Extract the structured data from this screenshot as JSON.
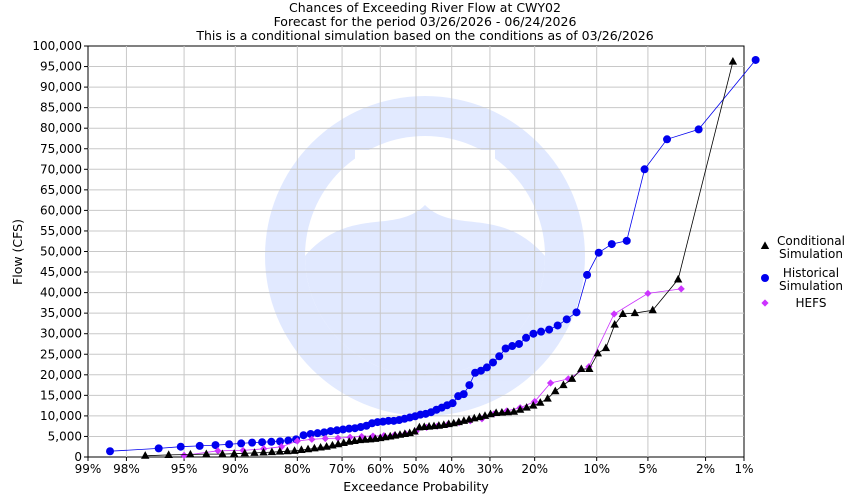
{
  "chart_data": {
    "type": "scatter",
    "title": "Chances of Exceeding River Flow at CWY02",
    "subtitle_lines": [
      "Forecast for the period 03/26/2026 - 06/24/2026",
      "This is a conditional simulation based on the conditions as of 03/26/2026"
    ],
    "xlabel": "Exceedance Probability",
    "ylabel": "Flow (CFS)",
    "x_scale": "normal-probability",
    "x_ticks": [
      {
        "p": 0.99,
        "label": "99%"
      },
      {
        "p": 0.98,
        "label": "98%"
      },
      {
        "p": 0.95,
        "label": "95%"
      },
      {
        "p": 0.9,
        "label": "90%"
      },
      {
        "p": 0.8,
        "label": "80%"
      },
      {
        "p": 0.7,
        "label": "70%"
      },
      {
        "p": 0.6,
        "label": "60%"
      },
      {
        "p": 0.5,
        "label": "50%"
      },
      {
        "p": 0.4,
        "label": "40%"
      },
      {
        "p": 0.3,
        "label": "30%"
      },
      {
        "p": 0.2,
        "label": "20%"
      },
      {
        "p": 0.1,
        "label": "10%"
      },
      {
        "p": 0.05,
        "label": "5%"
      },
      {
        "p": 0.02,
        "label": "2%"
      },
      {
        "p": 0.01,
        "label": "1%"
      }
    ],
    "ylim": [
      0,
      100000
    ],
    "y_tick_step": 5000,
    "y_tick_labels": [
      "0",
      "5,000",
      "10,000",
      "15,000",
      "20,000",
      "25,000",
      "30,000",
      "35,000",
      "40,000",
      "45,000",
      "50,000",
      "55,000",
      "60,000",
      "65,000",
      "70,000",
      "75,000",
      "80,000",
      "85,000",
      "90,000",
      "95,000",
      "100,000"
    ],
    "grid": true,
    "legend_position": "right",
    "series": [
      {
        "name": "Conditional Simulation",
        "legend_lines": [
          "Conditional",
          "Simulation"
        ],
        "marker": "triangle",
        "color": "#000000",
        "points": [
          [
            0.9726,
            300
          ],
          [
            0.9603,
            500
          ],
          [
            0.9452,
            600
          ],
          [
            0.9315,
            700
          ],
          [
            0.9151,
            700
          ],
          [
            0.9014,
            800
          ],
          [
            0.8877,
            900
          ],
          [
            0.874,
            1000
          ],
          [
            0.8603,
            1100
          ],
          [
            0.8466,
            1200
          ],
          [
            0.8329,
            1300
          ],
          [
            0.8192,
            1400
          ],
          [
            0.8055,
            1500
          ],
          [
            0.7918,
            1700
          ],
          [
            0.7781,
            1900
          ],
          [
            0.7644,
            2100
          ],
          [
            0.7507,
            2300
          ],
          [
            0.737,
            2500
          ],
          [
            0.7233,
            2800
          ],
          [
            0.7096,
            3100
          ],
          [
            0.6959,
            3400
          ],
          [
            0.6822,
            3700
          ],
          [
            0.6685,
            3900
          ],
          [
            0.6548,
            4100
          ],
          [
            0.6411,
            4200
          ],
          [
            0.6274,
            4300
          ],
          [
            0.6137,
            4400
          ],
          [
            0.6,
            4600
          ],
          [
            0.5863,
            4800
          ],
          [
            0.5726,
            5000
          ],
          [
            0.5589,
            5200
          ],
          [
            0.5452,
            5400
          ],
          [
            0.5315,
            5600
          ],
          [
            0.5178,
            5800
          ],
          [
            0.5041,
            6200
          ],
          [
            0.4904,
            7200
          ],
          [
            0.4767,
            7300
          ],
          [
            0.463,
            7400
          ],
          [
            0.4493,
            7500
          ],
          [
            0.4356,
            7600
          ],
          [
            0.4219,
            7800
          ],
          [
            0.4082,
            8000
          ],
          [
            0.3945,
            8200
          ],
          [
            0.3808,
            8500
          ],
          [
            0.3671,
            8800
          ],
          [
            0.3534,
            9100
          ],
          [
            0.3397,
            9400
          ],
          [
            0.326,
            9700
          ],
          [
            0.3123,
            10000
          ],
          [
            0.2986,
            10400
          ],
          [
            0.2849,
            10700
          ],
          [
            0.2712,
            10800
          ],
          [
            0.2575,
            10900
          ],
          [
            0.2438,
            11000
          ],
          [
            0.2301,
            11500
          ],
          [
            0.2164,
            12000
          ],
          [
            0.2027,
            12500
          ],
          [
            0.189,
            13200
          ],
          [
            0.1753,
            14200
          ],
          [
            0.1616,
            16000
          ],
          [
            0.1479,
            17500
          ],
          [
            0.1342,
            19000
          ],
          [
            0.1205,
            21400
          ],
          [
            0.1095,
            21400
          ],
          [
            0.0986,
            25200
          ],
          [
            0.089,
            26500
          ],
          [
            0.0794,
            32200
          ],
          [
            0.0712,
            34800
          ],
          [
            0.0603,
            35000
          ],
          [
            0.0466,
            35700
          ],
          [
            0.0315,
            43200
          ],
          [
            0.0123,
            96200
          ]
        ]
      },
      {
        "name": "Historical Simulation",
        "legend_lines": [
          "Historical",
          "Simulation"
        ],
        "marker": "circle",
        "color": "#0000ee",
        "points": [
          [
            0.985,
            1400
          ],
          [
            0.966,
            2100
          ],
          [
            0.9524,
            2500
          ],
          [
            0.9375,
            2700
          ],
          [
            0.9225,
            2900
          ],
          [
            0.9075,
            3100
          ],
          [
            0.8925,
            3300
          ],
          [
            0.8775,
            3500
          ],
          [
            0.8625,
            3600
          ],
          [
            0.8475,
            3700
          ],
          [
            0.8325,
            3800
          ],
          [
            0.8175,
            4000
          ],
          [
            0.8025,
            4300
          ],
          [
            0.7875,
            5300
          ],
          [
            0.7725,
            5600
          ],
          [
            0.7575,
            5800
          ],
          [
            0.7425,
            6000
          ],
          [
            0.7275,
            6300
          ],
          [
            0.7125,
            6500
          ],
          [
            0.6975,
            6700
          ],
          [
            0.6825,
            6900
          ],
          [
            0.6675,
            7000
          ],
          [
            0.6525,
            7300
          ],
          [
            0.6375,
            7600
          ],
          [
            0.6225,
            8200
          ],
          [
            0.6075,
            8500
          ],
          [
            0.5925,
            8600
          ],
          [
            0.5775,
            8800
          ],
          [
            0.5625,
            8800
          ],
          [
            0.5475,
            9000
          ],
          [
            0.5325,
            9300
          ],
          [
            0.5175,
            9600
          ],
          [
            0.5025,
            9900
          ],
          [
            0.4875,
            10300
          ],
          [
            0.4725,
            10500
          ],
          [
            0.4575,
            10900
          ],
          [
            0.4425,
            11500
          ],
          [
            0.4275,
            12000
          ],
          [
            0.4125,
            12600
          ],
          [
            0.3975,
            13100
          ],
          [
            0.3825,
            14800
          ],
          [
            0.3675,
            15300
          ],
          [
            0.3525,
            17500
          ],
          [
            0.3375,
            20500
          ],
          [
            0.3225,
            21000
          ],
          [
            0.3075,
            21800
          ],
          [
            0.2925,
            23000
          ],
          [
            0.2775,
            24500
          ],
          [
            0.2625,
            26400
          ],
          [
            0.2475,
            27000
          ],
          [
            0.2325,
            27500
          ],
          [
            0.2175,
            29000
          ],
          [
            0.2025,
            30000
          ],
          [
            0.1875,
            30500
          ],
          [
            0.1725,
            31000
          ],
          [
            0.1575,
            32000
          ],
          [
            0.1425,
            33500
          ],
          [
            0.1275,
            35200
          ],
          [
            0.1125,
            44300
          ],
          [
            0.0975,
            49700
          ],
          [
            0.0825,
            51800
          ],
          [
            0.0675,
            52600
          ],
          [
            0.0525,
            70000
          ],
          [
            0.0375,
            77300
          ],
          [
            0.0225,
            79700
          ],
          [
            0.008,
            96600
          ]
        ]
      },
      {
        "name": "HEFS",
        "legend_lines": [
          "HEFS"
        ],
        "marker": "diamond",
        "color": "#cc33ff",
        "points": [
          [
            0.95,
            400
          ],
          [
            0.92,
            1500
          ],
          [
            0.89,
            1600
          ],
          [
            0.86,
            2000
          ],
          [
            0.83,
            2500
          ],
          [
            0.8,
            3900
          ],
          [
            0.77,
            4300
          ],
          [
            0.74,
            4500
          ],
          [
            0.71,
            4600
          ],
          [
            0.68,
            4800
          ],
          [
            0.65,
            5000
          ],
          [
            0.62,
            5100
          ],
          [
            0.59,
            5200
          ],
          [
            0.56,
            5400
          ],
          [
            0.53,
            5700
          ],
          [
            0.5,
            6200
          ],
          [
            0.47,
            7200
          ],
          [
            0.44,
            7500
          ],
          [
            0.41,
            8000
          ],
          [
            0.38,
            8400
          ],
          [
            0.35,
            8800
          ],
          [
            0.32,
            9300
          ],
          [
            0.29,
            10500
          ],
          [
            0.26,
            11200
          ],
          [
            0.23,
            12000
          ],
          [
            0.2,
            13500
          ],
          [
            0.17,
            18000
          ],
          [
            0.14,
            19000
          ],
          [
            0.11,
            22000
          ],
          [
            0.08,
            34800
          ],
          [
            0.05,
            39800
          ],
          [
            0.03,
            40900
          ]
        ]
      }
    ]
  }
}
